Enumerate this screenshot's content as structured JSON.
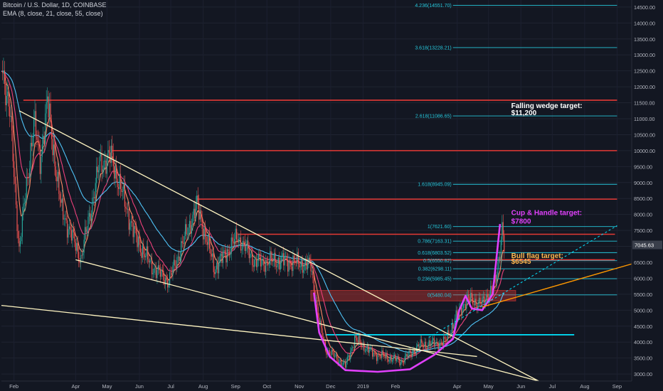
{
  "header": {
    "symbol_line": "Bitcoin / U.S. Dollar, 1D, COINBASE",
    "indicator_line": "EMA (8, close, 21, close, 55, close)"
  },
  "colors": {
    "background": "#131722",
    "axis_text": "#b2b5be",
    "fib": "#26c6da",
    "resistance": "#e53935",
    "wedge": "#fff5c2",
    "cup": "#e040fb",
    "bull_flag": "#ff9800",
    "support": "#00e5ff",
    "price_badge": "#3a3f4b",
    "candle_up": "#26a69a",
    "candle_down": "#ef5350",
    "ema8": "#ff8a65",
    "ema21": "#ec407a",
    "ema55": "#4fc3f7",
    "target_label": "#ffffff",
    "cup_label": "#e040fb",
    "flag_label": "#ffb74d"
  },
  "chart_data": {
    "type": "candlestick",
    "title": "Bitcoin / U.S. Dollar, 1D, COINBASE",
    "indicators": [
      "EMA 8",
      "EMA 21",
      "EMA 55"
    ],
    "x_axis": {
      "range": [
        "2018-01-20",
        "2019-09-15"
      ],
      "tick_labels": [
        {
          "date": "2018-02-01",
          "label": "Feb"
        },
        {
          "date": "2018-04-01",
          "label": "Apr"
        },
        {
          "date": "2018-05-01",
          "label": "May"
        },
        {
          "date": "2018-06-01",
          "label": "Jun"
        },
        {
          "date": "2018-07-01",
          "label": "Jul"
        },
        {
          "date": "2018-08-01",
          "label": "Aug"
        },
        {
          "date": "2018-09-01",
          "label": "Sep"
        },
        {
          "date": "2018-10-01",
          "label": "Oct"
        },
        {
          "date": "2018-11-01",
          "label": "Nov"
        },
        {
          "date": "2018-12-01",
          "label": "Dec"
        },
        {
          "date": "2019-01-01",
          "label": "2019"
        },
        {
          "date": "2019-02-01",
          "label": "Feb"
        },
        {
          "date": "2019-04-01",
          "label": "Apr"
        },
        {
          "date": "2019-05-01",
          "label": "May"
        },
        {
          "date": "2019-06-01",
          "label": "Jun"
        },
        {
          "date": "2019-07-01",
          "label": "Jul"
        },
        {
          "date": "2019-08-01",
          "label": "Aug"
        },
        {
          "date": "2019-09-01",
          "label": "Sep"
        }
      ]
    },
    "y_axis": {
      "range": [
        2780,
        14720
      ],
      "ticks": [
        "3000.00",
        "3500.00",
        "4000.00",
        "4500.00",
        "5000.00",
        "5500.00",
        "6000.00",
        "6500.00",
        "7000.00",
        "7500.00",
        "8000.00",
        "8500.00",
        "9000.00",
        "9500.00",
        "10000.00",
        "10500.00",
        "11000.00",
        "11500.00",
        "12000.00",
        "12500.00",
        "13000.00",
        "13500.00",
        "14000.00",
        "14500.00"
      ]
    },
    "last_price": "7045.63",
    "price_path": [
      {
        "date": "2018-01-20",
        "close": 12800
      },
      {
        "date": "2018-01-28",
        "close": 11200
      },
      {
        "date": "2018-02-06",
        "close": 6900
      },
      {
        "date": "2018-02-20",
        "close": 10900
      },
      {
        "date": "2018-02-26",
        "close": 9700
      },
      {
        "date": "2018-03-05",
        "close": 11500
      },
      {
        "date": "2018-03-18",
        "close": 8200
      },
      {
        "date": "2018-04-06",
        "close": 6600
      },
      {
        "date": "2018-04-24",
        "close": 9600
      },
      {
        "date": "2018-05-05",
        "close": 9800
      },
      {
        "date": "2018-05-28",
        "close": 7300
      },
      {
        "date": "2018-06-12",
        "close": 6400
      },
      {
        "date": "2018-06-29",
        "close": 5900
      },
      {
        "date": "2018-07-26",
        "close": 8300
      },
      {
        "date": "2018-08-12",
        "close": 6300
      },
      {
        "date": "2018-09-03",
        "close": 7300
      },
      {
        "date": "2018-09-20",
        "close": 6500
      },
      {
        "date": "2018-10-15",
        "close": 6550
      },
      {
        "date": "2018-11-12",
        "close": 6400
      },
      {
        "date": "2018-11-20",
        "close": 4600
      },
      {
        "date": "2018-11-26",
        "close": 3800
      },
      {
        "date": "2018-12-15",
        "close": 3250
      },
      {
        "date": "2018-12-24",
        "close": 4100
      },
      {
        "date": "2019-01-10",
        "close": 3650
      },
      {
        "date": "2019-02-07",
        "close": 3400
      },
      {
        "date": "2019-02-24",
        "close": 3900
      },
      {
        "date": "2019-03-20",
        "close": 4000
      },
      {
        "date": "2019-04-02",
        "close": 4900
      },
      {
        "date": "2019-04-10",
        "close": 5350
      },
      {
        "date": "2019-04-25",
        "close": 5200
      },
      {
        "date": "2019-05-08",
        "close": 5900
      },
      {
        "date": "2019-05-12",
        "close": 6900
      },
      {
        "date": "2019-05-14",
        "close": 7700
      },
      {
        "date": "2019-05-16",
        "close": 7045
      }
    ],
    "annotations": {
      "fibonacci": [
        {
          "label": "4.236(14551.70)",
          "price": 14551.7
        },
        {
          "label": "3.618(13228.21)",
          "price": 13228.21
        },
        {
          "label": "2.618(11086.65)",
          "price": 11086.65
        },
        {
          "label": "1.618(8945.09)",
          "price": 8945.09
        },
        {
          "label": "1(7621.60)",
          "price": 7621.6
        },
        {
          "label": "0.786(7163.31)",
          "price": 7163.31
        },
        {
          "label": "0.618(6803.52)",
          "price": 6803.52
        },
        {
          "label": "0.5(6550.82)",
          "price": 6550.82
        },
        {
          "label": "0.382(6298.11)",
          "price": 6298.11
        },
        {
          "label": "0.236(5985.45)",
          "price": 5985.45
        },
        {
          "label": "0(5480.04)",
          "price": 5480.04
        }
      ],
      "resistance_lines": [
        {
          "price": 11580,
          "from": "2018-02-10",
          "to": "2019-09-01"
        },
        {
          "price": 10000,
          "from": "2018-05-06",
          "to": "2019-09-01"
        },
        {
          "price": 8480,
          "from": "2018-07-26",
          "to": "2019-09-01"
        },
        {
          "price": 7380,
          "from": "2018-09-03",
          "to": "2019-08-30"
        },
        {
          "price": 6580,
          "from": "2018-11-06",
          "to": "2019-08-30"
        }
      ],
      "support_lines": [
        {
          "price": 4230,
          "from": "2018-11-26",
          "to": "2019-07-22"
        }
      ],
      "texts": [
        {
          "line1": "Falling wedge target:",
          "line2": "$11,200",
          "date": "2019-05-20",
          "price": 11200
        },
        {
          "line1": "Cup & Handle target:",
          "line2": "$7800",
          "date": "2019-05-20",
          "price": 7800
        },
        {
          "line1": "Bull flag target:",
          "line2": "$6545",
          "date": "2019-05-20",
          "price": 6545
        }
      ]
    }
  }
}
